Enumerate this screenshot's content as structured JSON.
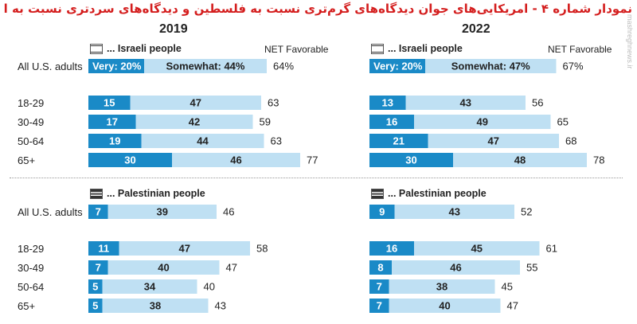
{
  "title": "نمودار شماره ۴ - امریکایی‌های جوان دیدگاه‌های گرم‌تری نسبت به فلسطین و دیدگاه‌های سردتری نسبت به اسرائیل دارند",
  "watermark": "mashreghnews.ir",
  "colors": {
    "very": "#1a8ac7",
    "somewhat": "#bfe0f3",
    "text_dark": "#222222",
    "text_light": "#ffffff"
  },
  "chart_data": [
    {
      "type": "bar",
      "stacked": true,
      "year": "2019",
      "group": "... Israeli people",
      "flag": "il-flag",
      "net_header": "NET Favorable",
      "categories": [
        "All U.S. adults",
        "18-29",
        "30-49",
        "50-64",
        "65+"
      ],
      "series": [
        {
          "name": "Very",
          "values": [
            20,
            15,
            17,
            19,
            30
          ]
        },
        {
          "name": "Somewhat",
          "values": [
            44,
            47,
            42,
            44,
            46
          ]
        }
      ],
      "net": [
        64,
        63,
        59,
        63,
        77
      ],
      "labels_very": [
        "Very: 20%",
        "15",
        "17",
        "19",
        "30"
      ],
      "labels_somewhat": [
        "Somewhat: 44%",
        "47",
        "42",
        "44",
        "46"
      ],
      "labels_net": [
        "64%",
        "63",
        "59",
        "63",
        "77"
      ]
    },
    {
      "type": "bar",
      "stacked": true,
      "year": "2022",
      "group": "... Israeli people",
      "flag": "il-flag",
      "net_header": "NET Favorable",
      "categories": [
        "All U.S. adults",
        "18-29",
        "30-49",
        "50-64",
        "65+"
      ],
      "series": [
        {
          "name": "Very",
          "values": [
            20,
            13,
            16,
            21,
            30
          ]
        },
        {
          "name": "Somewhat",
          "values": [
            47,
            43,
            49,
            47,
            48
          ]
        }
      ],
      "net": [
        67,
        56,
        65,
        68,
        78
      ],
      "labels_very": [
        "Very: 20%",
        "13",
        "16",
        "21",
        "30"
      ],
      "labels_somewhat": [
        "Somewhat: 47%",
        "43",
        "49",
        "47",
        "48"
      ],
      "labels_net": [
        "67%",
        "56",
        "65",
        "68",
        "78"
      ]
    },
    {
      "type": "bar",
      "stacked": true,
      "year": "2019",
      "group": "... Palestinian people",
      "flag": "ps-flag",
      "categories": [
        "All U.S. adults",
        "18-29",
        "30-49",
        "50-64",
        "65+"
      ],
      "series": [
        {
          "name": "Very",
          "values": [
            7,
            11,
            7,
            5,
            5
          ]
        },
        {
          "name": "Somewhat",
          "values": [
            39,
            47,
            40,
            34,
            38
          ]
        }
      ],
      "net": [
        46,
        58,
        47,
        40,
        43
      ],
      "labels_very": [
        "7",
        "11",
        "7",
        "5",
        "5"
      ],
      "labels_somewhat": [
        "39",
        "47",
        "40",
        "34",
        "38"
      ],
      "labels_net": [
        "46",
        "58",
        "47",
        "40",
        "43"
      ]
    },
    {
      "type": "bar",
      "stacked": true,
      "year": "2022",
      "group": "... Palestinian people",
      "flag": "ps-flag",
      "categories": [
        "All U.S. adults",
        "18-29",
        "30-49",
        "50-64",
        "65+"
      ],
      "series": [
        {
          "name": "Very",
          "values": [
            9,
            16,
            8,
            7,
            7
          ]
        },
        {
          "name": "Somewhat",
          "values": [
            43,
            45,
            46,
            38,
            40
          ]
        }
      ],
      "net": [
        52,
        61,
        55,
        45,
        47
      ],
      "labels_very": [
        "9",
        "16",
        "8",
        "7",
        "7"
      ],
      "labels_somewhat": [
        "43",
        "45",
        "46",
        "38",
        "40"
      ],
      "labels_net": [
        "52",
        "61",
        "55",
        "45",
        "47"
      ]
    }
  ]
}
